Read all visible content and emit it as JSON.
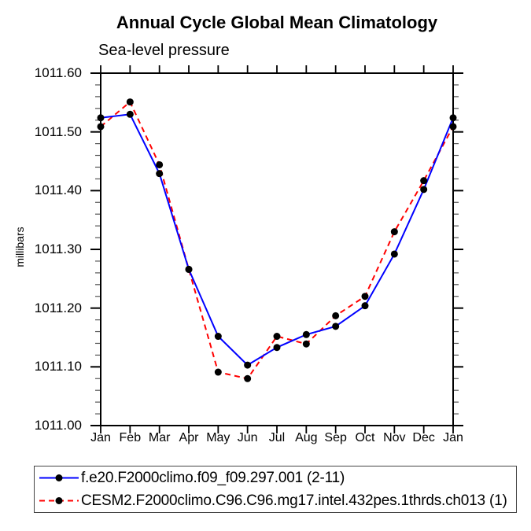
{
  "title": "Annual Cycle Global Mean Climatology",
  "subtitle": "Sea-level pressure",
  "y_axis_title": "millibars",
  "legend": {
    "items": [
      {
        "label": "f.e20.F2000climo.f09_f09.297.001 (2-11)",
        "color": "#0000ff",
        "line_style": "solid",
        "marker": "black-dot"
      },
      {
        "label": "CESM2.F2000climo.C96.C96.mg17.intel.432pes.1thrds.ch013 (1)",
        "color": "#ff0000",
        "line_style": "dashed",
        "marker": "black-dot"
      }
    ]
  },
  "chart_data": {
    "type": "line",
    "title": "Annual Cycle Global Mean Climatology",
    "subtitle": "Sea-level pressure",
    "ylabel": "millibars",
    "xlabel": "",
    "x": [
      "Jan",
      "Feb",
      "Mar",
      "Apr",
      "May",
      "Jun",
      "Jul",
      "Aug",
      "Sep",
      "Oct",
      "Nov",
      "Dec",
      "Jan"
    ],
    "series": [
      {
        "name": "f.e20.F2000climo.f09_f09.297.001 (2-11)",
        "color": "#0000ff",
        "line_style": "solid",
        "marker": "filled-circle",
        "marker_color": "#000000",
        "values": [
          1011.524,
          1011.53,
          1011.429,
          1011.266,
          1011.152,
          1011.103,
          1011.133,
          1011.155,
          1011.169,
          1011.204,
          1011.292,
          1011.402,
          1011.524
        ]
      },
      {
        "name": "CESM2.F2000climo.C96.C96.mg17.intel.432pes.1thrds.ch013 (1)",
        "color": "#ff0000",
        "line_style": "dashed",
        "marker": "filled-circle",
        "marker_color": "#000000",
        "values": [
          1011.509,
          1011.551,
          1011.444,
          1011.266,
          1011.091,
          1011.08,
          1011.152,
          1011.139,
          1011.187,
          1011.22,
          1011.33,
          1011.417,
          1011.509
        ]
      }
    ],
    "ylim": [
      1011.0,
      1011.6
    ],
    "ytick_step": 0.1,
    "yminor_step": 0.02,
    "ytick_labels": [
      "1011.60",
      "1011.50",
      "1011.40",
      "1011.30",
      "1011.20",
      "1011.10",
      "1011.00"
    ],
    "grid": false,
    "frame": "box-with-outward-ticks",
    "legend_position": "bottom-left"
  }
}
